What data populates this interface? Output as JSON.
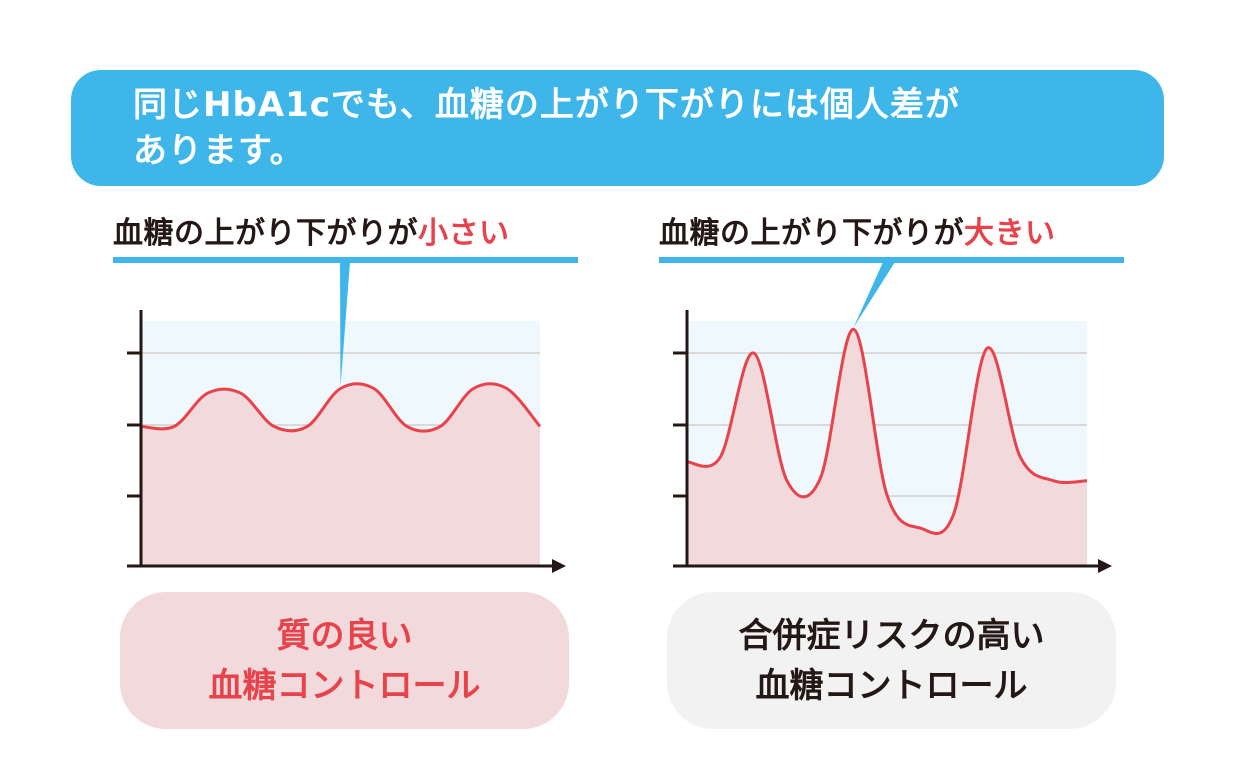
{
  "banner": {
    "line1": "同じHbA1cでも、血糖の上がり下がりには個人差が",
    "line2": "あります。"
  },
  "left_panel": {
    "title_prefix": "血糖の上がり下がりが",
    "title_accent": "小さい",
    "label_line1": "質の良い",
    "label_line2": "血糖コントロール"
  },
  "right_panel": {
    "title_prefix": "血糖の上がり下がりが",
    "title_accent": "大きい",
    "label_line1": "合併症リスクの高い",
    "label_line2": "血糖コントロール"
  },
  "colors": {
    "banner_blue": "#3eb6ea",
    "accent_red": "#e8434a",
    "curve_fill": "#f2d9dc",
    "band_fill": "#eef8fd",
    "axis": "#231815",
    "text": "#231815",
    "pill_gray": "#f2f2f2"
  },
  "chart_data": [
    {
      "type": "line",
      "description": "small fluctuation",
      "x": [
        0,
        1,
        2,
        3,
        4,
        5,
        6,
        7,
        8,
        9,
        10,
        11,
        12
      ],
      "values": [
        2.95,
        2.95,
        3.65,
        3.65,
        2.95,
        2.95,
        3.75,
        3.75,
        2.95,
        2.95,
        3.75,
        3.75,
        2.95
      ],
      "ylim": [
        0,
        4.5
      ],
      "yticks": 3,
      "grid": true
    },
    {
      "type": "line",
      "description": "large fluctuation",
      "x": [
        0,
        1,
        2,
        3,
        4,
        5,
        6,
        7,
        8,
        9,
        10,
        11,
        12
      ],
      "values": [
        2.2,
        2.3,
        4.5,
        1.8,
        1.85,
        5.0,
        1.5,
        0.8,
        1.1,
        4.6,
        2.3,
        1.8,
        1.8
      ],
      "ylim": [
        0,
        4.5
      ],
      "yticks": 3,
      "grid": true
    }
  ]
}
